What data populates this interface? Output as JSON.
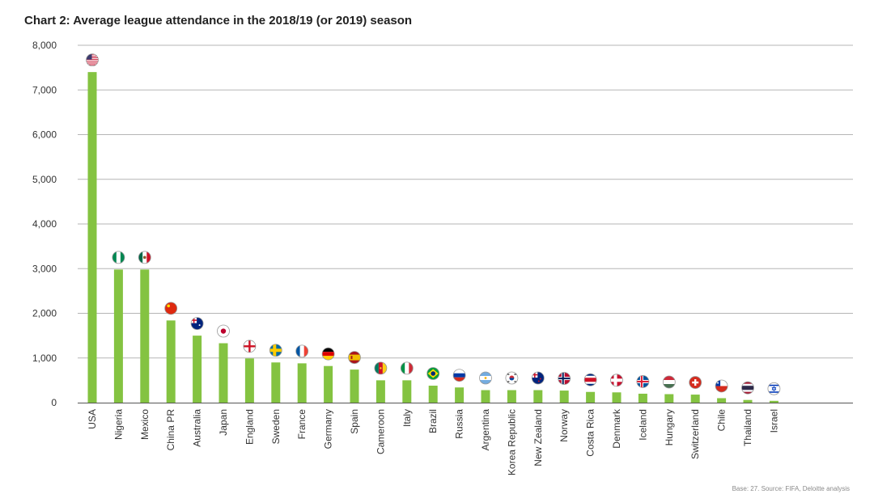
{
  "colors": {
    "bar": "#84c341",
    "grid": "#b5b5b5",
    "axis": "#555555",
    "text": "#333333"
  },
  "chart_data": {
    "type": "bar",
    "title": "Chart 2: Average league attendance in the 2018/19 (or 2019) season",
    "xlabel": "",
    "ylabel": "",
    "ylim": [
      0,
      8000
    ],
    "yticks": [
      0,
      1000,
      2000,
      3000,
      4000,
      5000,
      6000,
      7000,
      8000
    ],
    "ytick_labels": [
      "0",
      "1,000",
      "2,000",
      "3,000",
      "4,000",
      "5,000",
      "6,000",
      "7,000",
      "8,000"
    ],
    "grid": true,
    "categories": [
      "USA",
      "Nigeria",
      "Mexico",
      "China PR",
      "Australia",
      "Japan",
      "England",
      "Sweden",
      "France",
      "Germany",
      "Spain",
      "Cameroon",
      "Italy",
      "Brazil",
      "Russia",
      "Argentina",
      "Korea Republic",
      "New Zealand",
      "Norway",
      "Costa Rica",
      "Denmark",
      "Iceland",
      "Hungary",
      "Switzerland",
      "Chile",
      "Thailand",
      "Israel"
    ],
    "values": [
      7400,
      2980,
      2980,
      1840,
      1500,
      1330,
      990,
      900,
      880,
      820,
      740,
      500,
      500,
      380,
      340,
      280,
      280,
      280,
      270,
      240,
      230,
      200,
      190,
      180,
      100,
      60,
      40
    ],
    "flag_icons": [
      "usa-flag-icon",
      "nigeria-flag-icon",
      "mexico-flag-icon",
      "china-flag-icon",
      "australia-flag-icon",
      "japan-flag-icon",
      "england-flag-icon",
      "sweden-flag-icon",
      "france-flag-icon",
      "germany-flag-icon",
      "spain-flag-icon",
      "cameroon-flag-icon",
      "italy-flag-icon",
      "brazil-flag-icon",
      "russia-flag-icon",
      "argentina-flag-icon",
      "korea-flag-icon",
      "new-zealand-flag-icon",
      "norway-flag-icon",
      "costa-rica-flag-icon",
      "denmark-flag-icon",
      "iceland-flag-icon",
      "hungary-flag-icon",
      "switzerland-flag-icon",
      "chile-flag-icon",
      "thailand-flag-icon",
      "israel-flag-icon"
    ]
  },
  "source_text": "Base: 27. Source: FIFA, Deloitte analysis"
}
